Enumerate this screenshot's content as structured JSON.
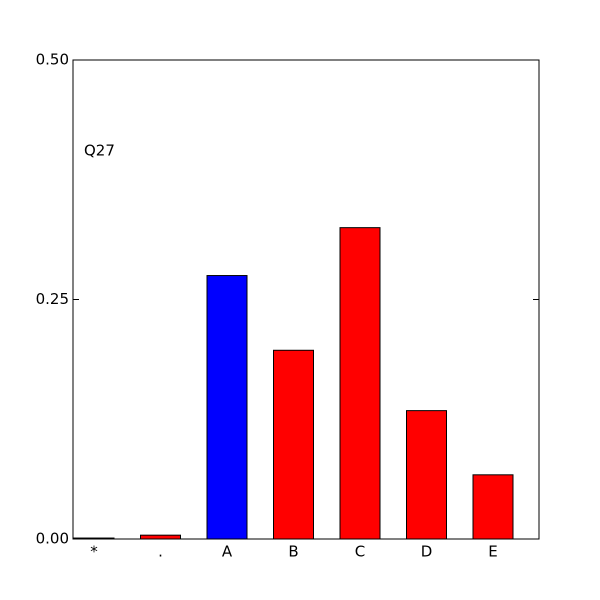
{
  "chart_data": {
    "type": "bar",
    "annotation": "Q27",
    "categories": [
      "*",
      ".",
      "A",
      "B",
      "C",
      "D",
      "E"
    ],
    "values": [
      0.001,
      0.004,
      0.275,
      0.197,
      0.325,
      0.134,
      0.067
    ],
    "colors": [
      "#ff0000",
      "#ff0000",
      "#0000ff",
      "#ff0000",
      "#ff0000",
      "#ff0000",
      "#ff0000"
    ],
    "ylim": [
      0,
      0.5
    ],
    "yticks": [
      {
        "value": 0,
        "label": "0.00"
      },
      0.25,
      {
        "value": 0.5,
        "label": "0.50"
      }
    ],
    "grid": false
  }
}
